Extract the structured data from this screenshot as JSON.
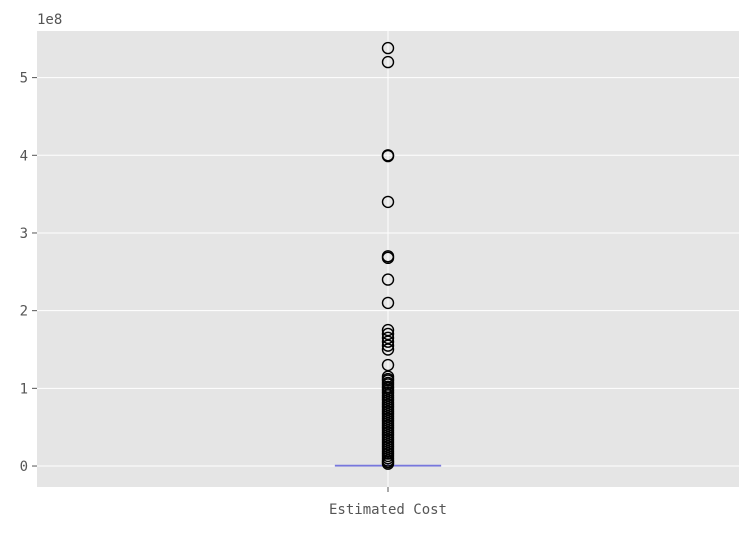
{
  "chart_data": {
    "type": "box",
    "style": "ggplot",
    "categories": [
      "Estimated Cost"
    ],
    "y_scale_label": "1e8",
    "y_tick_labels": [
      "0",
      "1",
      "2",
      "3",
      "4",
      "5"
    ],
    "y_ticks": [
      0,
      1,
      2,
      3,
      4,
      5
    ],
    "ylim": [
      -0.27,
      5.6
    ],
    "grid": true,
    "colors": {
      "background": "#E5E5E5",
      "grid": "#FFFFFF",
      "median": "#7777DD",
      "flier_edge": "#000000",
      "tick_text": "#555555"
    },
    "boxes": [
      {
        "name": "Estimated Cost",
        "min": 0,
        "q1": 0,
        "median": 0.005,
        "q3": 0.01,
        "max": 0.02,
        "outliers": [
          5.38,
          5.2,
          4.0,
          3.99,
          3.4,
          2.7,
          2.68,
          2.4,
          2.1,
          1.75,
          1.7,
          1.65,
          1.6,
          1.55,
          1.5,
          1.3,
          1.15,
          1.12,
          1.1,
          1.07,
          1.05,
          1.02,
          1.0,
          0.97,
          0.94,
          0.91,
          0.88,
          0.85,
          0.82,
          0.79,
          0.76,
          0.73,
          0.7,
          0.67,
          0.64,
          0.61,
          0.58,
          0.55,
          0.52,
          0.49,
          0.46,
          0.43,
          0.4,
          0.37,
          0.34,
          0.31,
          0.28,
          0.25,
          0.22,
          0.19,
          0.16,
          0.13,
          0.1,
          0.07,
          0.05,
          0.03
        ]
      }
    ]
  }
}
